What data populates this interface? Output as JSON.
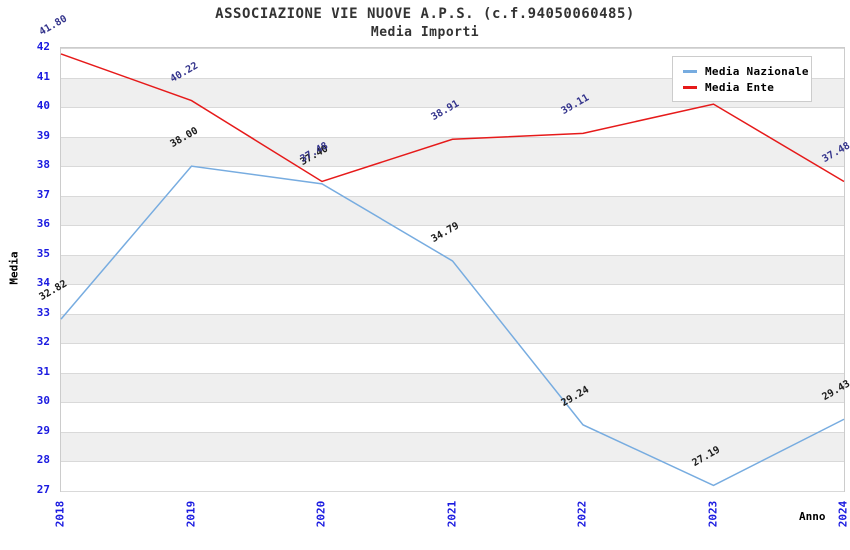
{
  "page": {
    "title": "ASSOCIAZIONE VIE NUOVE A.P.S. (c.f.94050060485)",
    "subtitle": "Media Importi"
  },
  "colors": {
    "tick_label_blue": "#1a1ae0",
    "band_gray": "#efefef",
    "gridline": "#d9d9d9",
    "title_gray": "#333333",
    "series_nazionale_blue": "#77ace0",
    "series_ente_red": "#e61a1a",
    "data_label_dark": "#1a1a1a",
    "data_label_navy": "#34348c"
  },
  "chart_data": {
    "type": "line",
    "title": "ASSOCIAZIONE VIE NUOVE A.P.S. (c.f.94050060485)",
    "subtitle": "Media Importi",
    "xlabel": "Anno",
    "ylabel": "Media",
    "x": [
      "2018",
      "2019",
      "2020",
      "2021",
      "2022",
      "2023",
      "2024"
    ],
    "ylim": [
      27,
      42
    ],
    "ytick_step": 1,
    "grid": "horizontal gridlines with alternating white/gray bands",
    "legend_position": "top-right",
    "legend": [
      "Media Nazionale",
      "Media Ente"
    ],
    "series": [
      {
        "name": "Media Nazionale",
        "color": "#77ace0",
        "label_color": "#1a1a1a",
        "values": [
          32.82,
          38.0,
          37.4,
          34.79,
          29.24,
          27.19,
          29.43
        ],
        "labels": [
          "32.82",
          "38.00",
          "37.40",
          "34.79",
          "29.24",
          "27.19",
          "29.43"
        ]
      },
      {
        "name": "Media Ente",
        "color": "#e61a1a",
        "label_color": "#34348c",
        "values": [
          41.8,
          40.22,
          37.48,
          38.91,
          39.11,
          40.1,
          37.48
        ],
        "labels": [
          "41.80",
          "40.22",
          "37.48",
          "38.91",
          "39.11",
          "",
          "37.48"
        ]
      }
    ]
  }
}
